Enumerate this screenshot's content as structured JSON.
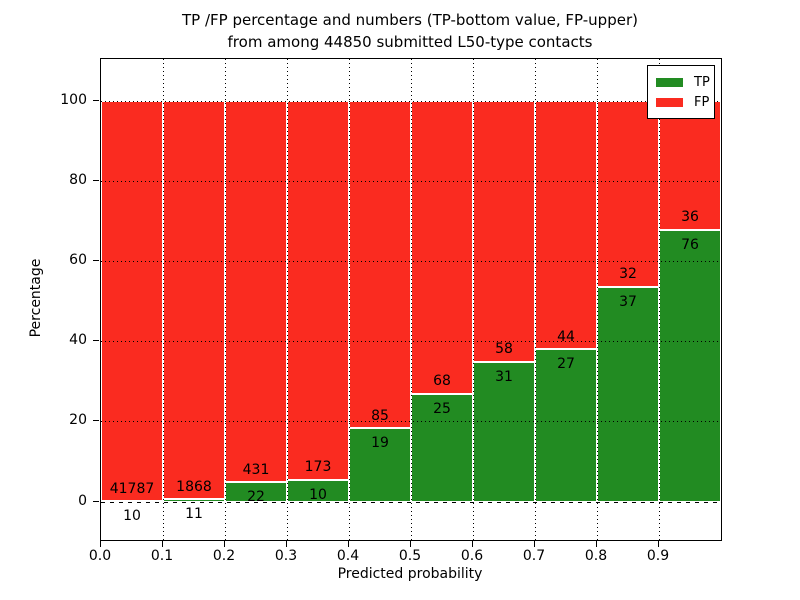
{
  "title": {
    "line1": "TP /FP percentage and numbers (TP-bottom value, FP-upper)",
    "line2": "from among 44850 submitted L50-type contacts"
  },
  "axes": {
    "xlabel": "Predicted probability",
    "ylabel": "Percentage"
  },
  "legend": {
    "items": [
      {
        "label": "TP",
        "color": "#228b22"
      },
      {
        "label": "FP",
        "color": "#fa2b20"
      }
    ]
  },
  "chart_data": {
    "type": "bar",
    "stacked": true,
    "title": "TP /FP percentage and numbers (TP-bottom value, FP-upper) from among 44850 submitted L50-type contacts",
    "xlabel": "Predicted probability",
    "ylabel": "Percentage",
    "total_submitted": 44850,
    "bins": [
      0.0,
      0.1,
      0.2,
      0.3,
      0.4,
      0.5,
      0.6,
      0.7,
      0.8,
      0.9
    ],
    "bin_width": 0.1,
    "series": [
      {
        "name": "TP",
        "color": "#228b22",
        "counts": [
          10,
          11,
          22,
          10,
          19,
          25,
          31,
          27,
          37,
          76
        ]
      },
      {
        "name": "FP",
        "color": "#fa2b20",
        "counts": [
          41787,
          1868,
          431,
          173,
          85,
          68,
          58,
          44,
          32,
          36
        ]
      }
    ],
    "y_unit": "percent of bin total; TP and FP stack to 100%",
    "xlim": [
      0.0,
      1.0
    ],
    "ylim": [
      -9.6,
      110.4
    ],
    "x_ticks": [
      "0.0",
      "0.1",
      "0.2",
      "0.3",
      "0.4",
      "0.5",
      "0.6",
      "0.7",
      "0.8",
      "0.9"
    ],
    "y_ticks": [
      0,
      20,
      40,
      60,
      80,
      100
    ],
    "grid": true,
    "grid_style": "dotted",
    "legend_position": "upper right"
  }
}
